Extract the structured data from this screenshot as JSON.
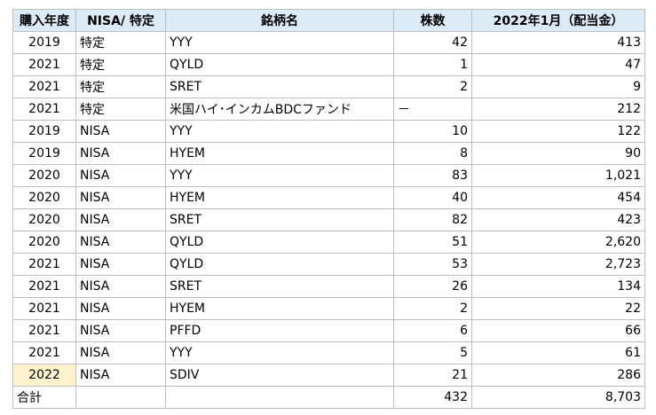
{
  "header": [
    "購入年度",
    "NISA/ 特定",
    "銘柄名",
    "株数",
    "2022年1月（配当金）"
  ],
  "rows": [
    [
      "2019",
      "特定",
      "YYY",
      "42",
      "413"
    ],
    [
      "2021",
      "特定",
      "QYLD",
      "1",
      "47"
    ],
    [
      "2021",
      "特定",
      "SRET",
      "2",
      "9"
    ],
    [
      "2021",
      "特定",
      "米国ハイ･インカムBDCファンド",
      "－",
      "212"
    ],
    [
      "2019",
      "NISA",
      "YYY",
      "10",
      "122"
    ],
    [
      "2019",
      "NISA",
      "HYEM",
      "8",
      "90"
    ],
    [
      "2020",
      "NISA",
      "YYY",
      "83",
      "1,021"
    ],
    [
      "2020",
      "NISA",
      "HYEM",
      "40",
      "454"
    ],
    [
      "2020",
      "NISA",
      "SRET",
      "82",
      "423"
    ],
    [
      "2020",
      "NISA",
      "QYLD",
      "51",
      "2,620"
    ],
    [
      "2021",
      "NISA",
      "QYLD",
      "53",
      "2,723"
    ],
    [
      "2021",
      "NISA",
      "SRET",
      "26",
      "134"
    ],
    [
      "2021",
      "NISA",
      "HYEM",
      "2",
      "22"
    ],
    [
      "2021",
      "NISA",
      "PFFD",
      "6",
      "66"
    ],
    [
      "2021",
      "NISA",
      "YYY",
      "5",
      "61"
    ],
    [
      "2022",
      "NISA",
      "SDIV",
      "21",
      "286"
    ]
  ],
  "total": {
    "label": "合計",
    "shares": "432",
    "dividend": "8,703"
  }
}
